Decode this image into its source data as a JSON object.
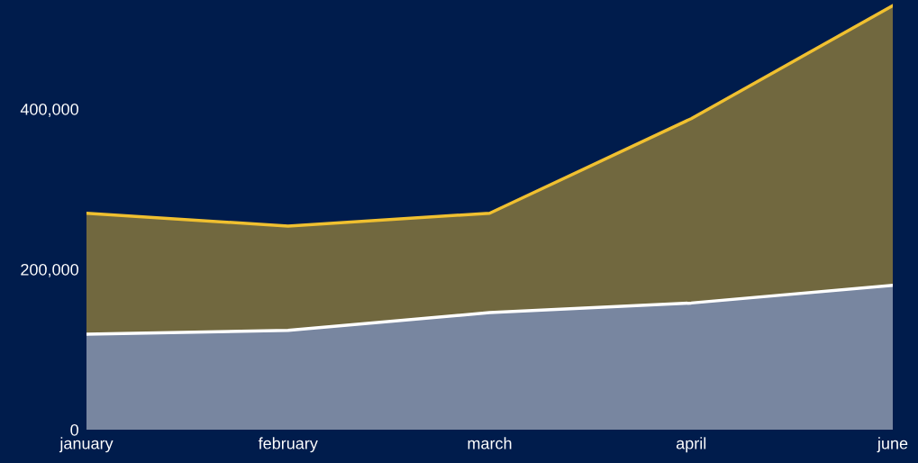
{
  "chart_data": {
    "type": "area",
    "stacked": true,
    "categories": [
      "january",
      "february",
      "march",
      "april",
      "june"
    ],
    "series": [
      {
        "color": "#ffffff",
        "values": [
          119000,
          124000,
          146000,
          158000,
          180000
        ]
      },
      {
        "color": "#f0c030",
        "values": [
          151000,
          130000,
          124000,
          230000,
          349000
        ]
      }
    ],
    "ylim": [
      0,
      536000
    ],
    "yticks": [
      {
        "value": 0,
        "label": "0"
      },
      {
        "value": 200000,
        "label": "200,000"
      },
      {
        "value": 400000,
        "label": "400,000"
      }
    ],
    "grid": false,
    "legend": false
  }
}
